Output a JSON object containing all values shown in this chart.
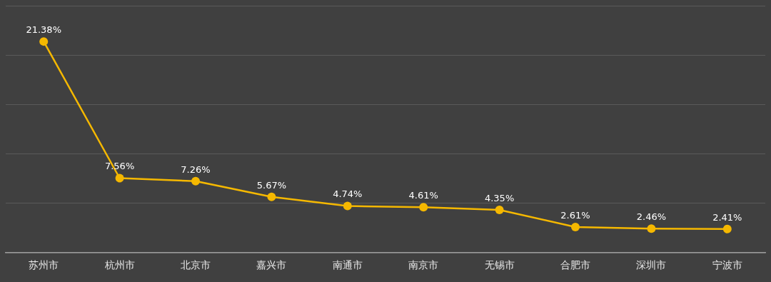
{
  "chart_data": {
    "type": "line",
    "categories": [
      "苏州市",
      "杭州市",
      "北京市",
      "嘉兴市",
      "南通市",
      "南京市",
      "无锡市",
      "合肥市",
      "深圳市",
      "宁波市"
    ],
    "series": [
      {
        "color": "#f5b800",
        "values": [
          21.38,
          7.56,
          7.26,
          5.67,
          4.74,
          4.61,
          4.35,
          2.61,
          2.46,
          2.41
        ],
        "value_labels": [
          "21.38%",
          "7.56%",
          "7.26%",
          "5.67%",
          "4.74%",
          "4.61%",
          "4.35%",
          "2.61%",
          "2.46%",
          "2.41%"
        ]
      }
    ],
    "ylim": [
      0,
      25
    ],
    "yticks": [
      {
        "value": 0,
        "label": null
      },
      {
        "value": 5,
        "label": null
      },
      {
        "value": 10,
        "label": null
      },
      {
        "value": 15,
        "label": null
      },
      {
        "value": 20,
        "label": null
      },
      {
        "value": 25,
        "label": null
      }
    ],
    "tick_labels": "x",
    "grid": "y",
    "marker": "circle",
    "line_style": "solid"
  }
}
